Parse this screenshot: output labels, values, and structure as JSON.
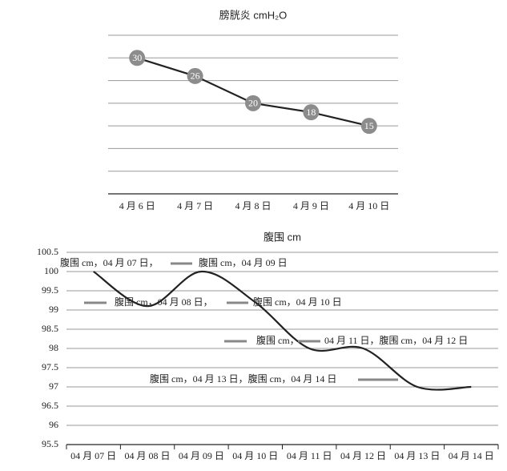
{
  "chart_data": [
    {
      "type": "line",
      "title": "膀胱炎 cmH₂O",
      "categories": [
        "4 月 6 日",
        "4 月 7 日",
        "4 月 8 日",
        "4 月 9 日",
        "4 月 10 日"
      ],
      "values": [
        30,
        26,
        20,
        18,
        15
      ],
      "color": "#222222",
      "marker_color": "#8c8c8c",
      "ylim": [
        0,
        35
      ],
      "yticks": [
        0,
        5,
        10,
        15,
        20,
        25,
        30,
        35
      ],
      "grid": true,
      "data_labels": true
    },
    {
      "type": "smooth_line",
      "title": "腹围 cm",
      "categories": [
        "04 月 07 日",
        "04 月 08 日",
        "04 月 09 日",
        "04 月 10 日",
        "04 月 11 日",
        "04 月 12 日",
        "04 月 13 日",
        "04 月 14 日"
      ],
      "values": [
        100,
        99.1,
        100,
        99.2,
        98,
        98,
        97,
        97
      ],
      "color": "#222222",
      "ylim": [
        95.5,
        100.5
      ],
      "yticks": [
        95.5,
        96,
        96.5,
        97,
        97.5,
        98,
        98.5,
        99,
        99.5,
        100,
        100.5
      ],
      "grid": true,
      "annotations": [
        "腹围 cm，04 月 07 日，",
        "腹围 cm，04 月 09 日",
        "腹围 cm，04 月 08 日，",
        "腹围 cm，04 月 10 日",
        "腹围 cm，",
        "04 月 11 日，腹围 cm，04 月 12 日",
        "腹围 cm，04 月 13 日，腹围 cm，04 月 14 日"
      ]
    }
  ]
}
